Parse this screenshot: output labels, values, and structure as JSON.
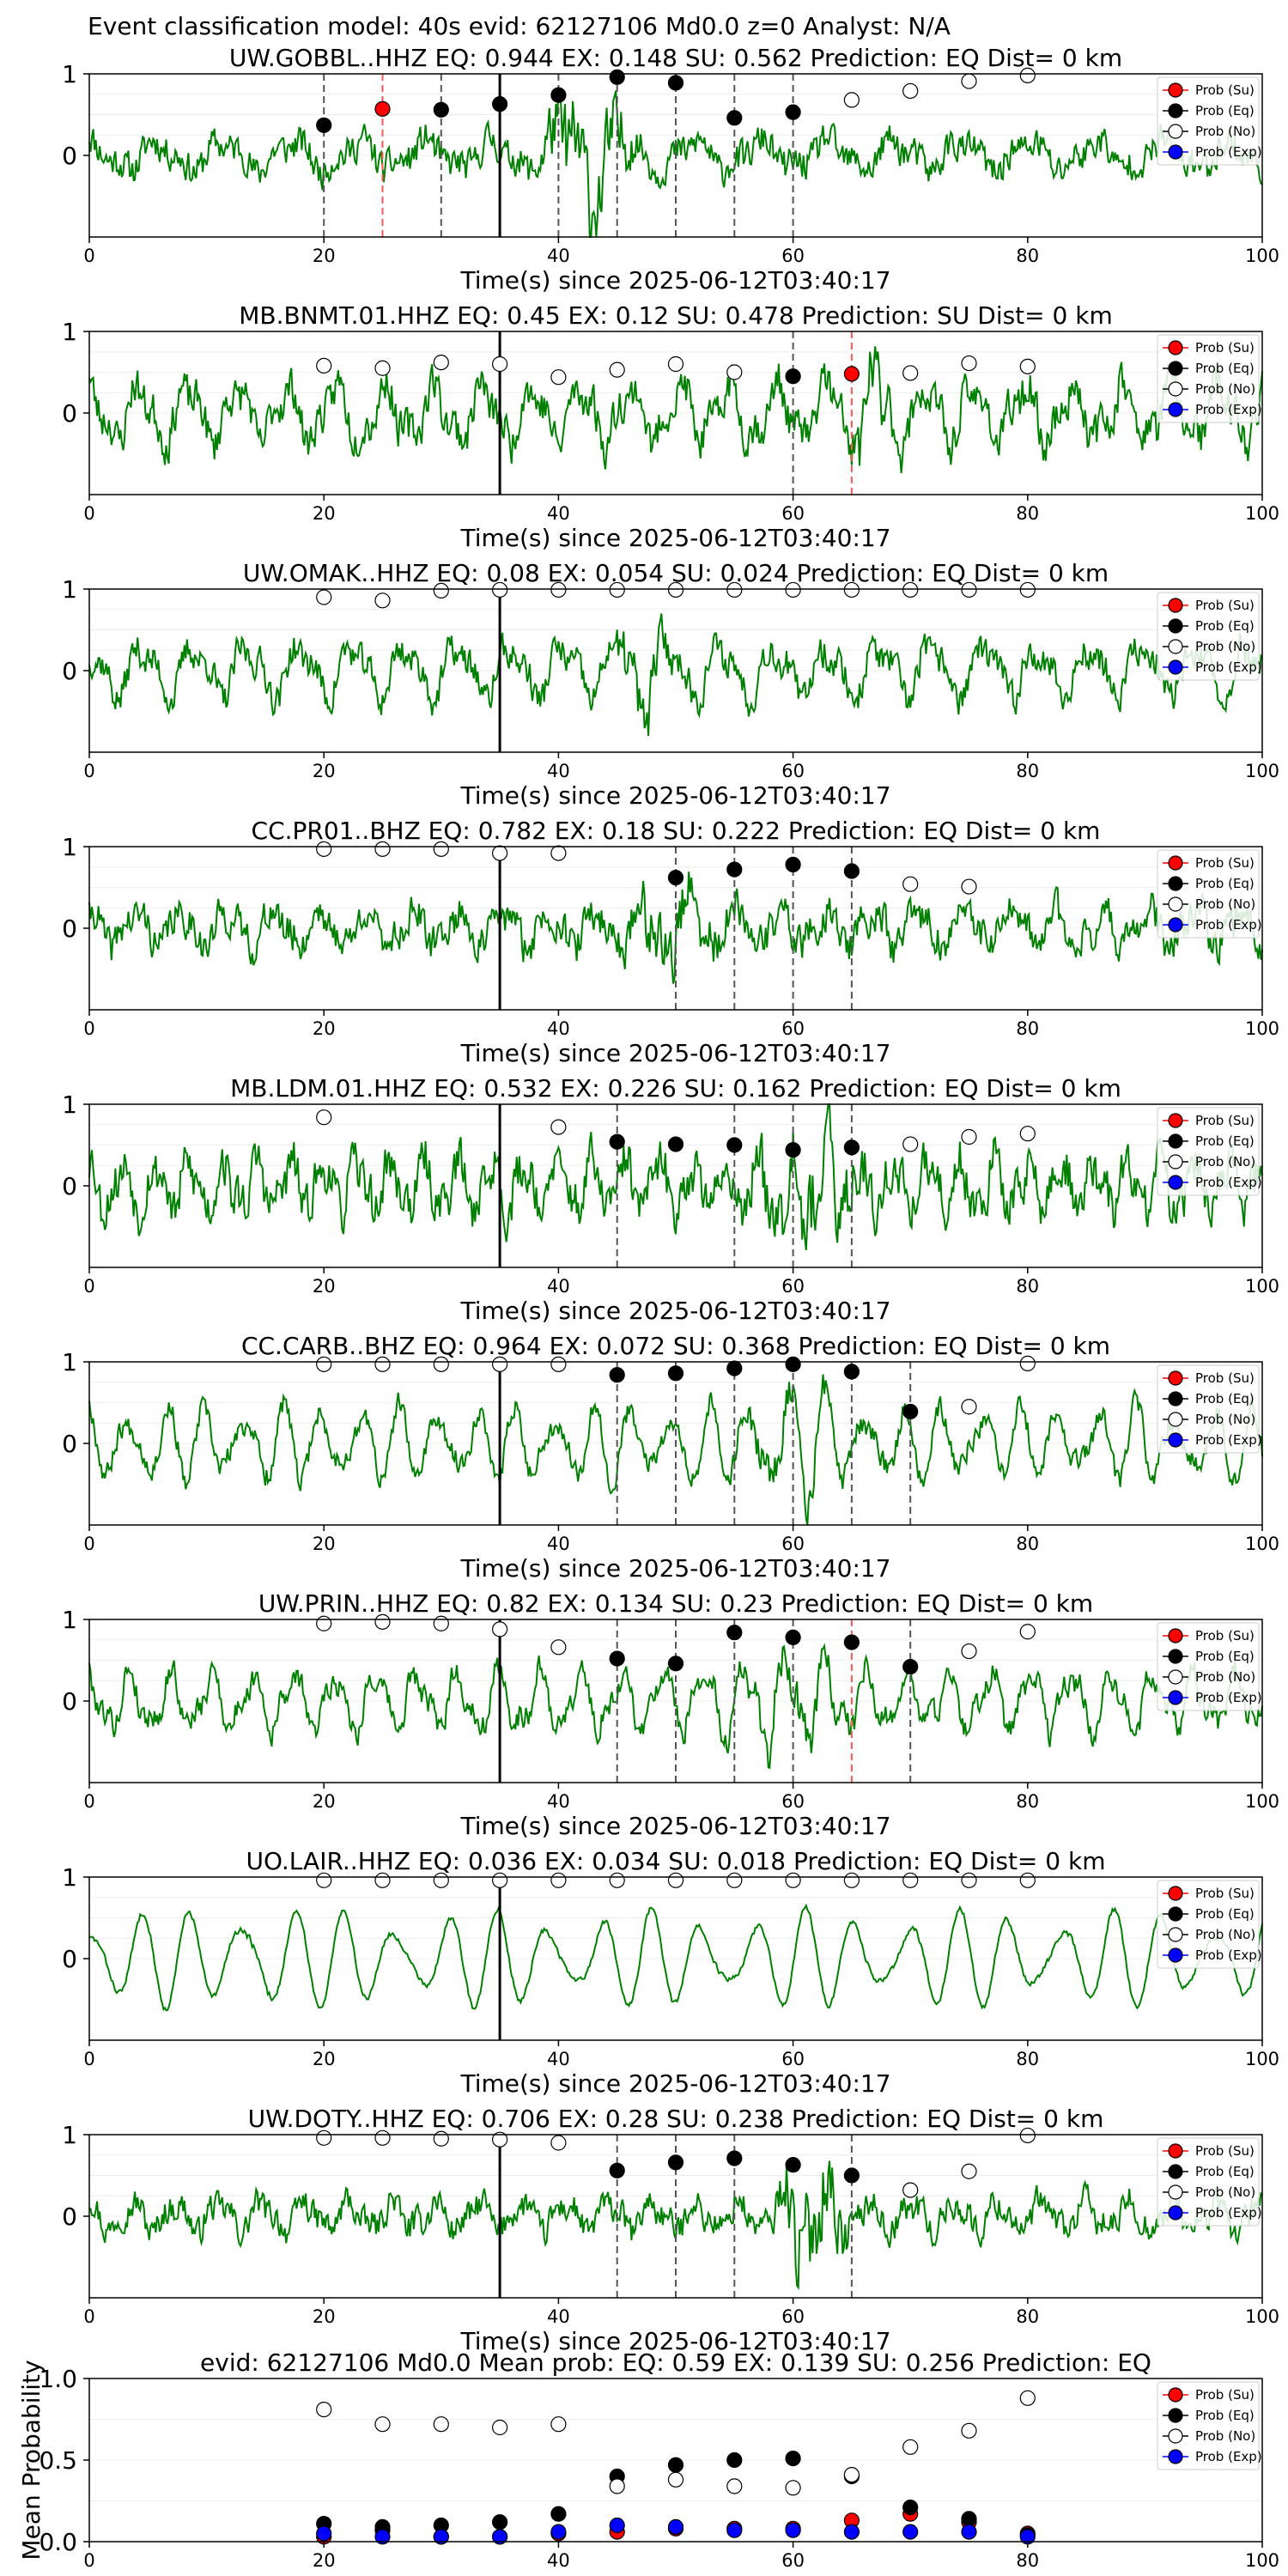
{
  "suptitle": "Event classification model: 40s evid: 62127106 Md0.0 z=0 Analyst: N/A",
  "legend": [
    "Prob (Su)",
    "Prob (Eq)",
    "Prob (No)",
    "Prob (Exp)"
  ],
  "colors": {
    "waveform": "#008000",
    "su": "#ff0000",
    "eq": "#000000",
    "no": "#ffffff",
    "exp": "#0000ff",
    "eq_line": "#555555",
    "su_line": "#ff5555",
    "origin_line": "#000000"
  },
  "chart_data": [
    {
      "type": "line",
      "station": "UW.GOBBL..HHZ",
      "title": "UW.GOBBL..HHZ   EQ: 0.944  EX: 0.148  SU: 0.562   Prediction: EQ    Dist= 0 km",
      "xlabel": "Time(s) since 2025-06-12T03:40:17",
      "xlim": [
        0,
        100
      ],
      "xticks": [
        "0",
        "20",
        "40",
        "60",
        "80",
        "100"
      ],
      "yticks": [
        "1",
        "0"
      ],
      "origin_time": 35,
      "wave": {
        "seed": 11,
        "amp": 0.22,
        "noise": 0.18,
        "burst": [
          38,
          47,
          0.45
        ],
        "w1": 0.55,
        "w2": 1.2
      },
      "dashed_eq": [
        20,
        30,
        40,
        45,
        50,
        55,
        60
      ],
      "dashed_su": [
        25
      ],
      "points": [
        {
          "x": 20,
          "y": 0.37,
          "c": "eq"
        },
        {
          "x": 25,
          "y": 0.57,
          "c": "su"
        },
        {
          "x": 30,
          "y": 0.56,
          "c": "eq"
        },
        {
          "x": 35,
          "y": 0.63,
          "c": "eq"
        },
        {
          "x": 40,
          "y": 0.74,
          "c": "eq"
        },
        {
          "x": 45,
          "y": 0.96,
          "c": "eq"
        },
        {
          "x": 50,
          "y": 0.89,
          "c": "eq"
        },
        {
          "x": 55,
          "y": 0.46,
          "c": "eq"
        },
        {
          "x": 60,
          "y": 0.53,
          "c": "eq"
        },
        {
          "x": 65,
          "y": 0.68,
          "c": "no"
        },
        {
          "x": 70,
          "y": 0.79,
          "c": "no"
        },
        {
          "x": 75,
          "y": 0.91,
          "c": "no"
        },
        {
          "x": 80,
          "y": 0.98,
          "c": "no"
        }
      ]
    },
    {
      "type": "line",
      "station": "MB.BNMT.01.HHZ",
      "title": "MB.BNMT.01.HHZ   EQ: 0.45  EX: 0.12  SU: 0.478   Prediction: SU    Dist= 0 km",
      "xlabel": "Time(s) since 2025-06-12T03:40:17",
      "xlim": [
        0,
        100
      ],
      "xticks": [
        "0",
        "20",
        "40",
        "60",
        "80",
        "100"
      ],
      "yticks": [
        "1",
        "0"
      ],
      "origin_time": 35,
      "wave": {
        "seed": 23,
        "amp": 0.42,
        "noise": 0.22,
        "burst": [
          62,
          70,
          0.25
        ],
        "w1": 0.75,
        "w2": 1.6
      },
      "dashed_eq": [
        60
      ],
      "dashed_su": [
        65
      ],
      "points": [
        {
          "x": 20,
          "y": 0.58,
          "c": "no"
        },
        {
          "x": 25,
          "y": 0.55,
          "c": "no"
        },
        {
          "x": 30,
          "y": 0.62,
          "c": "no"
        },
        {
          "x": 35,
          "y": 0.6,
          "c": "no"
        },
        {
          "x": 40,
          "y": 0.44,
          "c": "no"
        },
        {
          "x": 45,
          "y": 0.53,
          "c": "no"
        },
        {
          "x": 50,
          "y": 0.6,
          "c": "no"
        },
        {
          "x": 55,
          "y": 0.5,
          "c": "no"
        },
        {
          "x": 60,
          "y": 0.45,
          "c": "eq"
        },
        {
          "x": 65,
          "y": 0.48,
          "c": "su"
        },
        {
          "x": 70,
          "y": 0.49,
          "c": "no"
        },
        {
          "x": 75,
          "y": 0.61,
          "c": "no"
        },
        {
          "x": 80,
          "y": 0.57,
          "c": "no"
        }
      ]
    },
    {
      "type": "line",
      "station": "UW.OMAK..HHZ",
      "title": "UW.OMAK..HHZ   EQ: 0.08  EX: 0.054  SU: 0.024   Prediction: EQ    Dist= 0 km",
      "xlabel": "Time(s) since 2025-06-12T03:40:17",
      "xlim": [
        0,
        100
      ],
      "xticks": [
        "0",
        "20",
        "40",
        "60",
        "80",
        "100"
      ],
      "yticks": [
        "1",
        "0"
      ],
      "origin_time": 35,
      "wave": {
        "seed": 37,
        "amp": 0.38,
        "noise": 0.18,
        "burst": [
          44,
          50,
          0.3
        ],
        "w1": 0.7,
        "w2": 1.4
      },
      "dashed_eq": [],
      "dashed_su": [],
      "points": [
        {
          "x": 20,
          "y": 0.9,
          "c": "no"
        },
        {
          "x": 25,
          "y": 0.86,
          "c": "no"
        },
        {
          "x": 30,
          "y": 0.98,
          "c": "no"
        },
        {
          "x": 35,
          "y": 0.99,
          "c": "no"
        },
        {
          "x": 40,
          "y": 0.99,
          "c": "no"
        },
        {
          "x": 45,
          "y": 0.99,
          "c": "no"
        },
        {
          "x": 50,
          "y": 0.99,
          "c": "no"
        },
        {
          "x": 55,
          "y": 0.99,
          "c": "no"
        },
        {
          "x": 60,
          "y": 0.99,
          "c": "no"
        },
        {
          "x": 65,
          "y": 0.99,
          "c": "no"
        },
        {
          "x": 70,
          "y": 0.99,
          "c": "no"
        },
        {
          "x": 75,
          "y": 0.99,
          "c": "no"
        },
        {
          "x": 80,
          "y": 0.99,
          "c": "no"
        }
      ]
    },
    {
      "type": "line",
      "station": "CC.PR01..BHZ",
      "title": "CC.PR01..BHZ   EQ: 0.782  EX: 0.18  SU: 0.222   Prediction: EQ    Dist= 0 km",
      "xlabel": "Time(s) since 2025-06-12T03:40:17",
      "xlim": [
        0,
        100
      ],
      "xticks": [
        "0",
        "20",
        "40",
        "60",
        "80",
        "100"
      ],
      "yticks": [
        "1",
        "0"
      ],
      "origin_time": 35,
      "wave": {
        "seed": 41,
        "amp": 0.26,
        "noise": 0.2,
        "burst": [
          45,
          55,
          0.2
        ],
        "w1": 0.8,
        "w2": 1.5
      },
      "dashed_eq": [
        50,
        55,
        60,
        65
      ],
      "dashed_su": [],
      "points": [
        {
          "x": 20,
          "y": 0.97,
          "c": "no"
        },
        {
          "x": 25,
          "y": 0.97,
          "c": "no"
        },
        {
          "x": 30,
          "y": 0.97,
          "c": "no"
        },
        {
          "x": 35,
          "y": 0.92,
          "c": "no"
        },
        {
          "x": 40,
          "y": 0.92,
          "c": "no"
        },
        {
          "x": 50,
          "y": 0.62,
          "c": "eq"
        },
        {
          "x": 55,
          "y": 0.72,
          "c": "eq"
        },
        {
          "x": 60,
          "y": 0.78,
          "c": "eq"
        },
        {
          "x": 65,
          "y": 0.7,
          "c": "eq"
        },
        {
          "x": 70,
          "y": 0.54,
          "c": "no"
        },
        {
          "x": 75,
          "y": 0.51,
          "c": "no"
        }
      ]
    },
    {
      "type": "line",
      "station": "MB.LDM.01.HHZ",
      "title": "MB.LDM.01.HHZ   EQ: 0.532  EX: 0.226  SU: 0.162   Prediction: EQ    Dist= 0 km",
      "xlabel": "Time(s) since 2025-06-12T03:40:17",
      "xlim": [
        0,
        100
      ],
      "xticks": [
        "0",
        "20",
        "40",
        "60",
        "80",
        "100"
      ],
      "yticks": [
        "1",
        "0"
      ],
      "origin_time": 35,
      "wave": {
        "seed": 53,
        "amp": 0.36,
        "noise": 0.26,
        "burst": [
          55,
          68,
          0.25
        ],
        "w1": 1.1,
        "w2": 2.0
      },
      "dashed_eq": [
        45,
        55,
        60,
        65
      ],
      "dashed_su": [],
      "points": [
        {
          "x": 20,
          "y": 0.84,
          "c": "no"
        },
        {
          "x": 40,
          "y": 0.72,
          "c": "no"
        },
        {
          "x": 45,
          "y": 0.54,
          "c": "eq"
        },
        {
          "x": 50,
          "y": 0.51,
          "c": "eq"
        },
        {
          "x": 55,
          "y": 0.5,
          "c": "eq"
        },
        {
          "x": 60,
          "y": 0.44,
          "c": "eq"
        },
        {
          "x": 65,
          "y": 0.47,
          "c": "eq"
        },
        {
          "x": 70,
          "y": 0.51,
          "c": "no"
        },
        {
          "x": 75,
          "y": 0.6,
          "c": "no"
        },
        {
          "x": 80,
          "y": 0.64,
          "c": "no"
        }
      ]
    },
    {
      "type": "line",
      "station": "CC.CARB..BHZ",
      "title": "CC.CARB..BHZ   EQ: 0.964  EX: 0.072  SU: 0.368   Prediction: EQ    Dist= 0 km",
      "xlabel": "Time(s) since 2025-06-12T03:40:17",
      "xlim": [
        0,
        100
      ],
      "xticks": [
        "0",
        "20",
        "40",
        "60",
        "80",
        "100"
      ],
      "yticks": [
        "1",
        "0"
      ],
      "origin_time": 35,
      "wave": {
        "seed": 67,
        "amp": 0.5,
        "noise": 0.12,
        "burst": [
          55,
          65,
          0.35
        ],
        "w1": 0.95,
        "w2": 1.3
      },
      "dashed_eq": [
        45,
        50,
        55,
        60,
        65,
        70
      ],
      "dashed_su": [],
      "points": [
        {
          "x": 20,
          "y": 0.97,
          "c": "no"
        },
        {
          "x": 25,
          "y": 0.97,
          "c": "no"
        },
        {
          "x": 30,
          "y": 0.97,
          "c": "no"
        },
        {
          "x": 35,
          "y": 0.97,
          "c": "no"
        },
        {
          "x": 40,
          "y": 0.97,
          "c": "no"
        },
        {
          "x": 45,
          "y": 0.84,
          "c": "eq"
        },
        {
          "x": 50,
          "y": 0.86,
          "c": "eq"
        },
        {
          "x": 55,
          "y": 0.92,
          "c": "eq"
        },
        {
          "x": 60,
          "y": 0.97,
          "c": "eq"
        },
        {
          "x": 65,
          "y": 0.88,
          "c": "eq"
        },
        {
          "x": 70,
          "y": 0.39,
          "c": "eq"
        },
        {
          "x": 75,
          "y": 0.45,
          "c": "no"
        },
        {
          "x": 80,
          "y": 0.98,
          "c": "no"
        }
      ]
    },
    {
      "type": "line",
      "station": "UW.PRIN..HHZ",
      "title": "UW.PRIN..HHZ   EQ: 0.82  EX: 0.134  SU: 0.23   Prediction: EQ    Dist= 0 km",
      "xlabel": "Time(s) since 2025-06-12T03:40:17",
      "xlim": [
        0,
        100
      ],
      "xticks": [
        "0",
        "20",
        "40",
        "60",
        "80",
        "100"
      ],
      "yticks": [
        "1",
        "0"
      ],
      "origin_time": 35,
      "wave": {
        "seed": 79,
        "amp": 0.42,
        "noise": 0.14,
        "burst": [
          52,
          66,
          0.3
        ],
        "w1": 0.9,
        "w2": 1.7
      },
      "dashed_eq": [
        45,
        50,
        55,
        60,
        70
      ],
      "dashed_su": [
        65
      ],
      "points": [
        {
          "x": 20,
          "y": 0.95,
          "c": "no"
        },
        {
          "x": 25,
          "y": 0.97,
          "c": "no"
        },
        {
          "x": 30,
          "y": 0.95,
          "c": "no"
        },
        {
          "x": 35,
          "y": 0.88,
          "c": "no"
        },
        {
          "x": 40,
          "y": 0.66,
          "c": "no"
        },
        {
          "x": 45,
          "y": 0.52,
          "c": "eq"
        },
        {
          "x": 50,
          "y": 0.46,
          "c": "eq"
        },
        {
          "x": 55,
          "y": 0.84,
          "c": "eq"
        },
        {
          "x": 60,
          "y": 0.78,
          "c": "eq"
        },
        {
          "x": 65,
          "y": 0.72,
          "c": "eq"
        },
        {
          "x": 70,
          "y": 0.42,
          "c": "eq"
        },
        {
          "x": 75,
          "y": 0.61,
          "c": "no"
        },
        {
          "x": 80,
          "y": 0.85,
          "c": "no"
        }
      ]
    },
    {
      "type": "line",
      "station": "UO.LAIR..HHZ",
      "title": "UO.LAIR..HHZ   EQ: 0.036  EX: 0.034  SU: 0.018   Prediction: EQ    Dist= 0 km",
      "xlabel": "Time(s) since 2025-06-12T03:40:17",
      "xlim": [
        0,
        100
      ],
      "xticks": [
        "0",
        "20",
        "40",
        "60",
        "80",
        "100"
      ],
      "yticks": [
        "1",
        "0"
      ],
      "origin_time": 35,
      "wave": {
        "seed": 83,
        "amp": 0.62,
        "noise": 0.03,
        "burst": [
          10,
          18,
          0.25
        ],
        "w1": 0.72,
        "w2": 0.95
      },
      "dashed_eq": [],
      "dashed_su": [],
      "points": [
        {
          "x": 20,
          "y": 0.96,
          "c": "no"
        },
        {
          "x": 25,
          "y": 0.96,
          "c": "no"
        },
        {
          "x": 30,
          "y": 0.96,
          "c": "no"
        },
        {
          "x": 35,
          "y": 0.96,
          "c": "no"
        },
        {
          "x": 40,
          "y": 0.96,
          "c": "no"
        },
        {
          "x": 45,
          "y": 0.96,
          "c": "no"
        },
        {
          "x": 50,
          "y": 0.96,
          "c": "no"
        },
        {
          "x": 55,
          "y": 0.96,
          "c": "no"
        },
        {
          "x": 60,
          "y": 0.96,
          "c": "no"
        },
        {
          "x": 65,
          "y": 0.96,
          "c": "no"
        },
        {
          "x": 70,
          "y": 0.96,
          "c": "no"
        },
        {
          "x": 75,
          "y": 0.96,
          "c": "no"
        },
        {
          "x": 80,
          "y": 0.96,
          "c": "no"
        }
      ]
    },
    {
      "type": "line",
      "station": "UW.DOTY..HHZ",
      "title": "UW.DOTY..HHZ   EQ: 0.706  EX: 0.28  SU: 0.238   Prediction: EQ    Dist= 0 km",
      "xlabel": "Time(s) since 2025-06-12T03:40:17",
      "xlim": [
        0,
        100
      ],
      "xticks": [
        "0",
        "20",
        "40",
        "60",
        "80",
        "100"
      ],
      "yticks": [
        "1",
        "0"
      ],
      "origin_time": 35,
      "wave": {
        "seed": 97,
        "amp": 0.22,
        "noise": 0.16,
        "burst": [
          58,
          65,
          0.45
        ],
        "w1": 0.85,
        "w2": 1.6
      },
      "dashed_eq": [
        45,
        50,
        55,
        65
      ],
      "dashed_su": [],
      "points": [
        {
          "x": 20,
          "y": 0.96,
          "c": "no"
        },
        {
          "x": 25,
          "y": 0.96,
          "c": "no"
        },
        {
          "x": 30,
          "y": 0.95,
          "c": "no"
        },
        {
          "x": 35,
          "y": 0.94,
          "c": "no"
        },
        {
          "x": 40,
          "y": 0.9,
          "c": "no"
        },
        {
          "x": 45,
          "y": 0.56,
          "c": "eq"
        },
        {
          "x": 50,
          "y": 0.66,
          "c": "eq"
        },
        {
          "x": 55,
          "y": 0.71,
          "c": "eq"
        },
        {
          "x": 60,
          "y": 0.63,
          "c": "eq"
        },
        {
          "x": 65,
          "y": 0.5,
          "c": "eq"
        },
        {
          "x": 70,
          "y": 0.32,
          "c": "no"
        },
        {
          "x": 75,
          "y": 0.55,
          "c": "no"
        },
        {
          "x": 80,
          "y": 0.99,
          "c": "no"
        }
      ]
    },
    {
      "type": "scatter",
      "title": "evid: 62127106   Md0.0    Mean prob:   EQ: 0.59   EX: 0.139   SU: 0.256   Prediction: EQ",
      "ylabel": "Mean Probability",
      "xlim": [
        0,
        100
      ],
      "ylim": [
        0,
        1
      ],
      "xticks": [
        "0",
        "20",
        "40",
        "60",
        "80",
        "100"
      ],
      "yticks": [
        "0.0",
        "0.5",
        "1.0"
      ],
      "x": [
        20,
        25,
        30,
        35,
        40,
        45,
        50,
        55,
        60,
        65,
        70,
        75,
        80
      ],
      "series": [
        {
          "name": "Prob (Su)",
          "c": "su",
          "values": [
            0.03,
            0.07,
            0.03,
            0.03,
            0.05,
            0.06,
            0.08,
            0.08,
            0.08,
            0.13,
            0.17,
            0.12,
            0.05
          ]
        },
        {
          "name": "Prob (Eq)",
          "c": "eq",
          "values": [
            0.11,
            0.09,
            0.1,
            0.12,
            0.17,
            0.4,
            0.47,
            0.5,
            0.51,
            0.4,
            0.21,
            0.14,
            0.04
          ]
        },
        {
          "name": "Prob (No)",
          "c": "no",
          "values": [
            0.81,
            0.72,
            0.72,
            0.7,
            0.72,
            0.34,
            0.38,
            0.34,
            0.33,
            0.41,
            0.58,
            0.68,
            0.88
          ]
        },
        {
          "name": "Prob (Exp)",
          "c": "exp",
          "values": [
            0.05,
            0.03,
            0.03,
            0.03,
            0.06,
            0.1,
            0.09,
            0.07,
            0.07,
            0.06,
            0.06,
            0.06,
            0.03
          ]
        }
      ]
    }
  ]
}
